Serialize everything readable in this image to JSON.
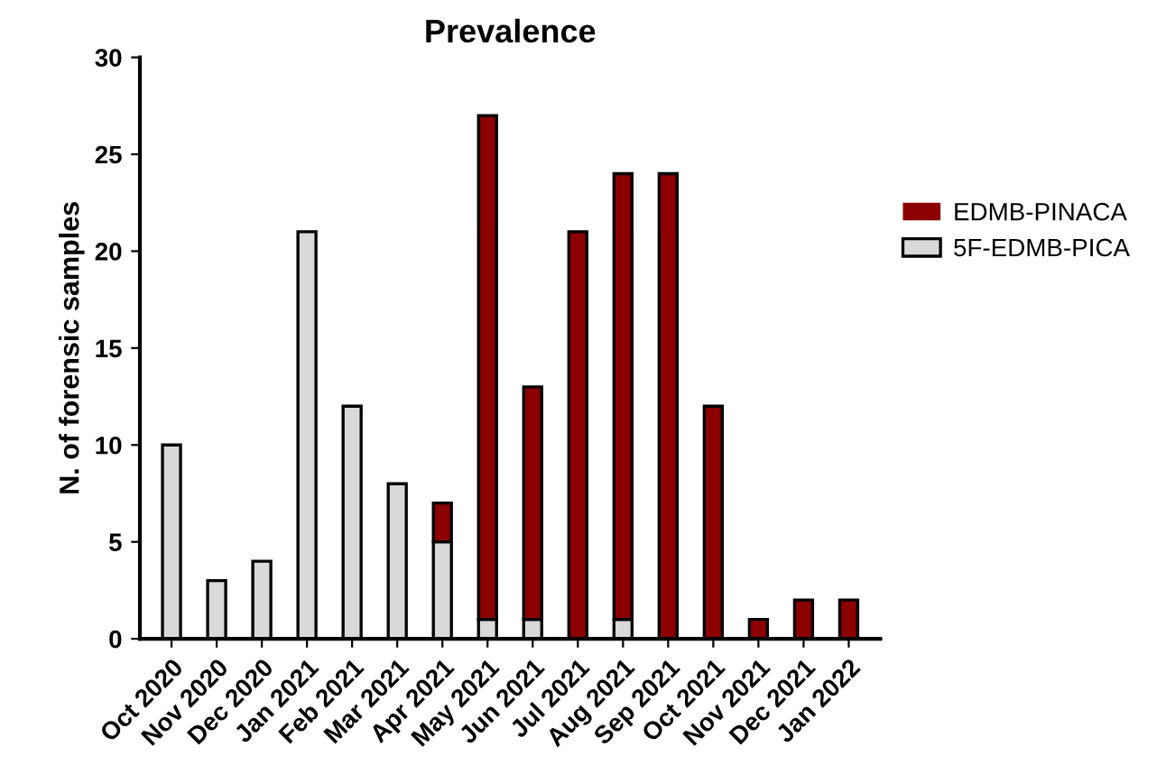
{
  "chart_data": {
    "type": "bar",
    "stacked": true,
    "title": "Prevalence",
    "ylabel": "N. of forensic samples",
    "categories": [
      "Oct 2020",
      "Nov 2020",
      "Dec 2020",
      "Jan 2021",
      "Feb 2021",
      "Mar 2021",
      "Apr 2021",
      "May 2021",
      "Jun 2021",
      "Jul 2021",
      "Aug 2021",
      "Sep 2021",
      "Oct 2021",
      "Nov 2021",
      "Dec 2021",
      "Jan 2022"
    ],
    "series": [
      {
        "name": "5F-EDMB-PICA",
        "color": "#d9d9d9",
        "values": [
          10,
          3,
          4,
          21,
          12,
          8,
          5,
          1,
          1,
          0,
          1,
          0,
          0,
          0,
          0,
          0
        ]
      },
      {
        "name": "EDMB-PINACA",
        "color": "#8b0000",
        "values": [
          0,
          0,
          0,
          0,
          0,
          0,
          2,
          26,
          12,
          21,
          23,
          24,
          12,
          1,
          2,
          2
        ]
      }
    ],
    "ylim": [
      0,
      30
    ],
    "yticks": [
      0,
      5,
      10,
      15,
      20,
      25,
      30
    ],
    "grid": false,
    "legend": "right"
  }
}
